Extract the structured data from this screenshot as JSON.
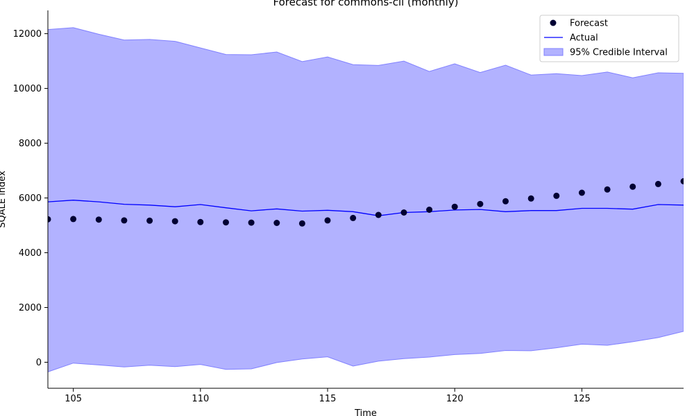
{
  "chart_data": {
    "type": "line",
    "title": "Forecast for commons-cli (monthly)",
    "xlabel": "Time",
    "ylabel": "SQALE index",
    "xlim": [
      104,
      129
    ],
    "ylim": [
      -950,
      12850
    ],
    "x_ticks": [
      105,
      110,
      115,
      120,
      125
    ],
    "y_ticks": [
      0,
      2000,
      4000,
      6000,
      8000,
      10000,
      12000
    ],
    "grid": false,
    "legend_position": "upper right",
    "x": [
      104,
      105,
      106,
      107,
      108,
      109,
      110,
      111,
      112,
      113,
      114,
      115,
      116,
      117,
      118,
      119,
      120,
      121,
      122,
      123,
      124,
      125,
      126,
      127,
      128,
      129
    ],
    "series": [
      {
        "name": "Forecast",
        "kind": "scatter",
        "color": "#000033",
        "values": [
          5220,
          5230,
          5210,
          5180,
          5170,
          5150,
          5120,
          5110,
          5100,
          5090,
          5070,
          5180,
          5270,
          5380,
          5470,
          5570,
          5680,
          5780,
          5880,
          5980,
          6080,
          6190,
          6310,
          6410,
          6510,
          6610
        ]
      },
      {
        "name": "Actual",
        "kind": "line",
        "color": "#0000ff",
        "values": [
          5860,
          5920,
          5860,
          5770,
          5740,
          5680,
          5760,
          5640,
          5530,
          5600,
          5520,
          5550,
          5500,
          5350,
          5470,
          5500,
          5560,
          5580,
          5500,
          5540,
          5540,
          5620,
          5620,
          5590,
          5760,
          5740
        ]
      },
      {
        "name": "95% Credible Interval",
        "kind": "band",
        "color": "#b2b2ff",
        "edge_color": "#8080ff",
        "upper": [
          12150,
          12220,
          11980,
          11770,
          11790,
          11720,
          11480,
          11240,
          11230,
          11330,
          10980,
          11150,
          10870,
          10840,
          11000,
          10620,
          10900,
          10580,
          10850,
          10490,
          10540,
          10470,
          10600,
          10390,
          10570,
          10550
        ],
        "lower": [
          -350,
          -30,
          -100,
          -170,
          -110,
          -160,
          -80,
          -260,
          -240,
          -10,
          120,
          200,
          -140,
          40,
          130,
          190,
          280,
          320,
          430,
          420,
          530,
          660,
          620,
          750,
          900,
          1130
        ]
      }
    ],
    "legend": [
      "Forecast",
      "Actual",
      "95% Credible Interval"
    ]
  }
}
